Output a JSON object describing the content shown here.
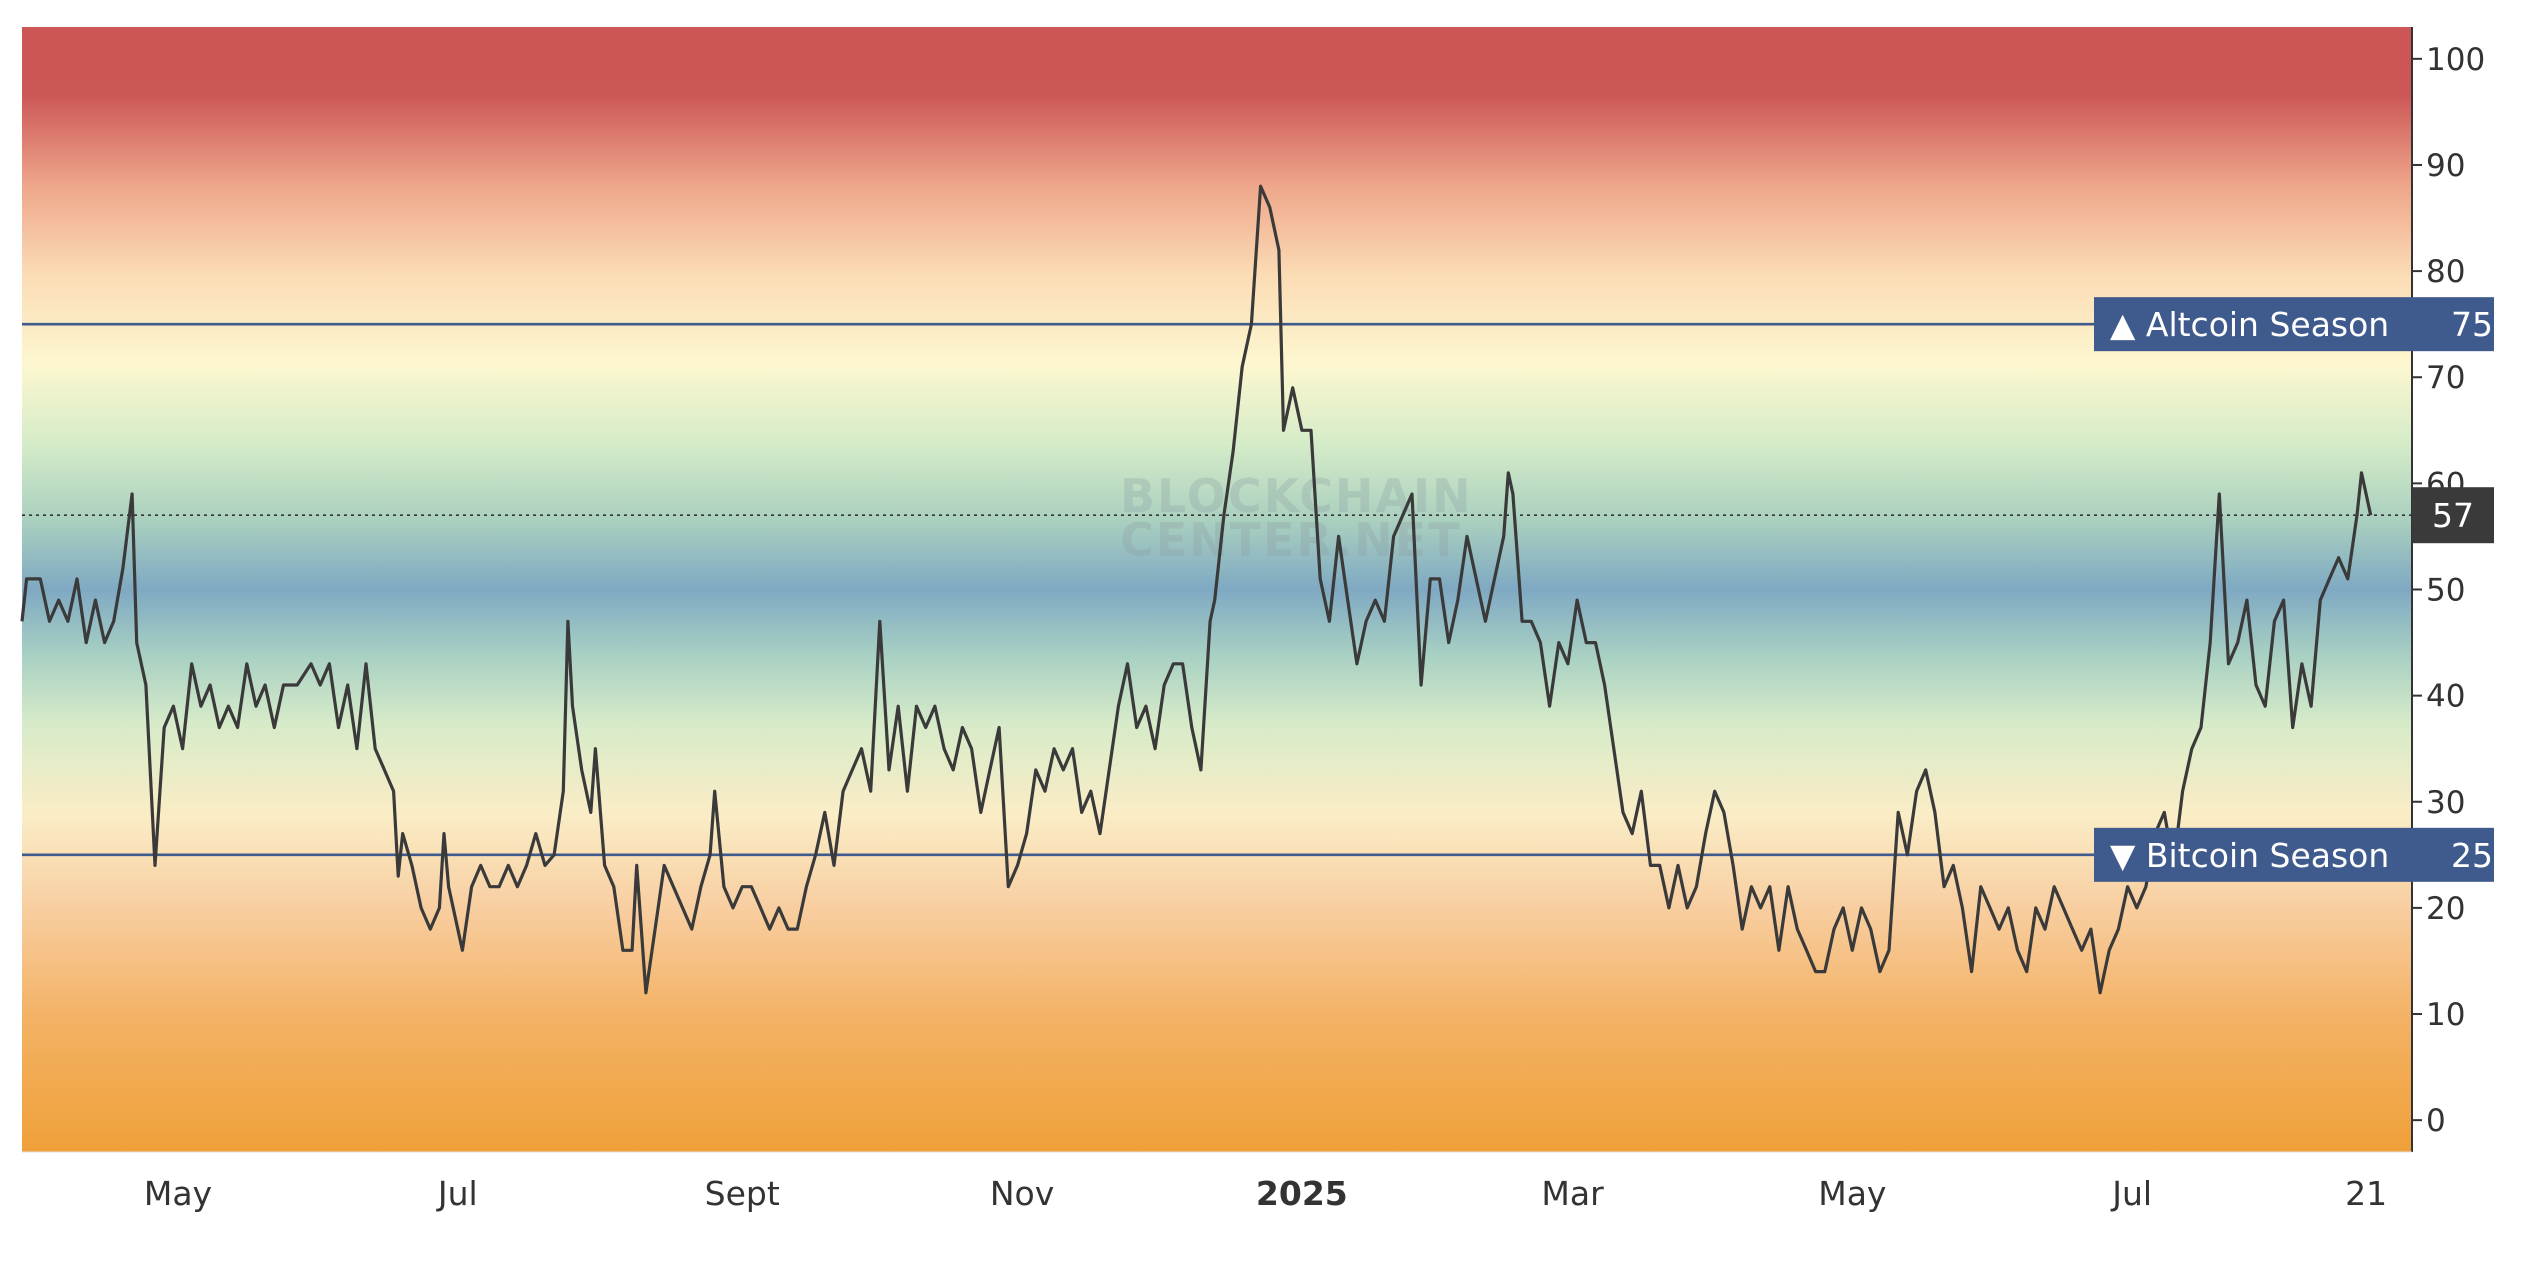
{
  "watermark": [
    "BLOCKCHAIN",
    "CENTER.NET"
  ],
  "colors": {
    "band_top": "#cc5555",
    "band_mid": "#7fa9c3",
    "band_bottom": "#f0a039",
    "line": "#3a3a3a",
    "threshold": "#3f5a8c",
    "current_tag": "#3a3a3a"
  },
  "chart_data": {
    "type": "line",
    "title": "",
    "xlabel": "",
    "ylabel": "",
    "ylim": [
      -3,
      103
    ],
    "yticks": [
      0,
      10,
      20,
      30,
      40,
      50,
      60,
      70,
      80,
      90,
      100
    ],
    "x_range": [
      "2024-03-28",
      "2025-08-31"
    ],
    "x_ticks": [
      {
        "label": "May",
        "date": "2024-05-01",
        "bold": false
      },
      {
        "label": "Jul",
        "date": "2024-07-01",
        "bold": false
      },
      {
        "label": "Sept",
        "date": "2024-09-01",
        "bold": false
      },
      {
        "label": "Nov",
        "date": "2024-11-01",
        "bold": false
      },
      {
        "label": "2025",
        "date": "2025-01-01",
        "bold": true
      },
      {
        "label": "Mar",
        "date": "2025-03-01",
        "bold": false
      },
      {
        "label": "May",
        "date": "2025-05-01",
        "bold": false
      },
      {
        "label": "Jul",
        "date": "2025-07-01",
        "bold": false
      },
      {
        "label": "21",
        "date": "2025-08-21",
        "bold": false
      }
    ],
    "thresholds": [
      {
        "label": "▲ Altcoin Season",
        "value": 75
      },
      {
        "label": "▼ Bitcoin Season",
        "value": 25
      }
    ],
    "current_value": 57,
    "grid": false,
    "series": [
      {
        "points": [
          [
            "2024-03-28",
            47
          ],
          [
            "2024-03-29",
            51
          ],
          [
            "2024-04-01",
            51
          ],
          [
            "2024-04-03",
            47
          ],
          [
            "2024-04-05",
            49
          ],
          [
            "2024-04-07",
            47
          ],
          [
            "2024-04-09",
            51
          ],
          [
            "2024-04-11",
            45
          ],
          [
            "2024-04-13",
            49
          ],
          [
            "2024-04-15",
            45
          ],
          [
            "2024-04-17",
            47
          ],
          [
            "2024-04-19",
            52
          ],
          [
            "2024-04-21",
            59
          ],
          [
            "2024-04-22",
            45
          ],
          [
            "2024-04-24",
            41
          ],
          [
            "2024-04-26",
            24
          ],
          [
            "2024-04-28",
            37
          ],
          [
            "2024-04-30",
            39
          ],
          [
            "2024-05-02",
            35
          ],
          [
            "2024-05-04",
            43
          ],
          [
            "2024-05-06",
            39
          ],
          [
            "2024-05-08",
            41
          ],
          [
            "2024-05-10",
            37
          ],
          [
            "2024-05-12",
            39
          ],
          [
            "2024-05-14",
            37
          ],
          [
            "2024-05-16",
            43
          ],
          [
            "2024-05-18",
            39
          ],
          [
            "2024-05-20",
            41
          ],
          [
            "2024-05-22",
            37
          ],
          [
            "2024-05-24",
            41
          ],
          [
            "2024-05-27",
            41
          ],
          [
            "2024-05-30",
            43
          ],
          [
            "2024-06-01",
            41
          ],
          [
            "2024-06-03",
            43
          ],
          [
            "2024-06-05",
            37
          ],
          [
            "2024-06-07",
            41
          ],
          [
            "2024-06-09",
            35
          ],
          [
            "2024-06-11",
            43
          ],
          [
            "2024-06-13",
            35
          ],
          [
            "2024-06-15",
            33
          ],
          [
            "2024-06-17",
            31
          ],
          [
            "2024-06-18",
            23
          ],
          [
            "2024-06-19",
            27
          ],
          [
            "2024-06-21",
            24
          ],
          [
            "2024-06-23",
            20
          ],
          [
            "2024-06-25",
            18
          ],
          [
            "2024-06-27",
            20
          ],
          [
            "2024-06-28",
            27
          ],
          [
            "2024-06-29",
            22
          ],
          [
            "2024-07-01",
            18
          ],
          [
            "2024-07-02",
            16
          ],
          [
            "2024-07-04",
            22
          ],
          [
            "2024-07-06",
            24
          ],
          [
            "2024-07-08",
            22
          ],
          [
            "2024-07-10",
            22
          ],
          [
            "2024-07-12",
            24
          ],
          [
            "2024-07-14",
            22
          ],
          [
            "2024-07-16",
            24
          ],
          [
            "2024-07-18",
            27
          ],
          [
            "2024-07-20",
            24
          ],
          [
            "2024-07-22",
            25
          ],
          [
            "2024-07-24",
            31
          ],
          [
            "2024-07-25",
            47
          ],
          [
            "2024-07-26",
            39
          ],
          [
            "2024-07-28",
            33
          ],
          [
            "2024-07-30",
            29
          ],
          [
            "2024-07-31",
            35
          ],
          [
            "2024-08-02",
            24
          ],
          [
            "2024-08-04",
            22
          ],
          [
            "2024-08-06",
            16
          ],
          [
            "2024-08-08",
            16
          ],
          [
            "2024-08-09",
            24
          ],
          [
            "2024-08-11",
            12
          ],
          [
            "2024-08-13",
            18
          ],
          [
            "2024-08-15",
            24
          ],
          [
            "2024-08-17",
            22
          ],
          [
            "2024-08-19",
            20
          ],
          [
            "2024-08-21",
            18
          ],
          [
            "2024-08-23",
            22
          ],
          [
            "2024-08-25",
            25
          ],
          [
            "2024-08-26",
            31
          ],
          [
            "2024-08-28",
            22
          ],
          [
            "2024-08-30",
            20
          ],
          [
            "2024-09-01",
            22
          ],
          [
            "2024-09-03",
            22
          ],
          [
            "2024-09-05",
            20
          ],
          [
            "2024-09-07",
            18
          ],
          [
            "2024-09-09",
            20
          ],
          [
            "2024-09-11",
            18
          ],
          [
            "2024-09-13",
            18
          ],
          [
            "2024-09-15",
            22
          ],
          [
            "2024-09-17",
            25
          ],
          [
            "2024-09-19",
            29
          ],
          [
            "2024-09-21",
            24
          ],
          [
            "2024-09-23",
            31
          ],
          [
            "2024-09-25",
            33
          ],
          [
            "2024-09-27",
            35
          ],
          [
            "2024-09-29",
            31
          ],
          [
            "2024-10-01",
            47
          ],
          [
            "2024-10-03",
            33
          ],
          [
            "2024-10-05",
            39
          ],
          [
            "2024-10-07",
            31
          ],
          [
            "2024-10-09",
            39
          ],
          [
            "2024-10-11",
            37
          ],
          [
            "2024-10-13",
            39
          ],
          [
            "2024-10-15",
            35
          ],
          [
            "2024-10-17",
            33
          ],
          [
            "2024-10-19",
            37
          ],
          [
            "2024-10-21",
            35
          ],
          [
            "2024-10-23",
            29
          ],
          [
            "2024-10-25",
            33
          ],
          [
            "2024-10-27",
            37
          ],
          [
            "2024-10-29",
            22
          ],
          [
            "2024-10-31",
            24
          ],
          [
            "2024-11-02",
            27
          ],
          [
            "2024-11-04",
            33
          ],
          [
            "2024-11-06",
            31
          ],
          [
            "2024-11-08",
            35
          ],
          [
            "2024-11-10",
            33
          ],
          [
            "2024-11-12",
            35
          ],
          [
            "2024-11-14",
            29
          ],
          [
            "2024-11-16",
            31
          ],
          [
            "2024-11-18",
            27
          ],
          [
            "2024-11-20",
            33
          ],
          [
            "2024-11-22",
            39
          ],
          [
            "2024-11-24",
            43
          ],
          [
            "2024-11-26",
            37
          ],
          [
            "2024-11-28",
            39
          ],
          [
            "2024-11-30",
            35
          ],
          [
            "2024-12-02",
            41
          ],
          [
            "2024-12-04",
            43
          ],
          [
            "2024-12-06",
            43
          ],
          [
            "2024-12-08",
            37
          ],
          [
            "2024-12-10",
            33
          ],
          [
            "2024-12-12",
            47
          ],
          [
            "2024-12-13",
            49
          ],
          [
            "2024-12-15",
            57
          ],
          [
            "2024-12-17",
            63
          ],
          [
            "2024-12-19",
            71
          ],
          [
            "2024-12-21",
            75
          ],
          [
            "2024-12-23",
            88
          ],
          [
            "2024-12-25",
            86
          ],
          [
            "2024-12-27",
            82
          ],
          [
            "2024-12-28",
            65
          ],
          [
            "2024-12-30",
            69
          ],
          [
            "2025-01-01",
            65
          ],
          [
            "2025-01-03",
            65
          ],
          [
            "2025-01-05",
            51
          ],
          [
            "2025-01-07",
            47
          ],
          [
            "2025-01-09",
            55
          ],
          [
            "2025-01-11",
            49
          ],
          [
            "2025-01-13",
            43
          ],
          [
            "2025-01-15",
            47
          ],
          [
            "2025-01-17",
            49
          ],
          [
            "2025-01-19",
            47
          ],
          [
            "2025-01-21",
            55
          ],
          [
            "2025-01-23",
            57
          ],
          [
            "2025-01-25",
            59
          ],
          [
            "2025-01-27",
            41
          ],
          [
            "2025-01-29",
            51
          ],
          [
            "2025-01-31",
            51
          ],
          [
            "2025-02-02",
            45
          ],
          [
            "2025-02-04",
            49
          ],
          [
            "2025-02-06",
            55
          ],
          [
            "2025-02-08",
            51
          ],
          [
            "2025-02-10",
            47
          ],
          [
            "2025-02-12",
            51
          ],
          [
            "2025-02-14",
            55
          ],
          [
            "2025-02-15",
            61
          ],
          [
            "2025-02-16",
            59
          ],
          [
            "2025-02-18",
            47
          ],
          [
            "2025-02-20",
            47
          ],
          [
            "2025-02-22",
            45
          ],
          [
            "2025-02-24",
            39
          ],
          [
            "2025-02-26",
            45
          ],
          [
            "2025-02-28",
            43
          ],
          [
            "2025-03-02",
            49
          ],
          [
            "2025-03-04",
            45
          ],
          [
            "2025-03-06",
            45
          ],
          [
            "2025-03-08",
            41
          ],
          [
            "2025-03-10",
            35
          ],
          [
            "2025-03-12",
            29
          ],
          [
            "2025-03-14",
            27
          ],
          [
            "2025-03-16",
            31
          ],
          [
            "2025-03-18",
            24
          ],
          [
            "2025-03-20",
            24
          ],
          [
            "2025-03-22",
            20
          ],
          [
            "2025-03-24",
            24
          ],
          [
            "2025-03-26",
            20
          ],
          [
            "2025-03-28",
            22
          ],
          [
            "2025-03-30",
            27
          ],
          [
            "2025-04-01",
            31
          ],
          [
            "2025-04-03",
            29
          ],
          [
            "2025-04-05",
            24
          ],
          [
            "2025-04-07",
            18
          ],
          [
            "2025-04-09",
            22
          ],
          [
            "2025-04-11",
            20
          ],
          [
            "2025-04-13",
            22
          ],
          [
            "2025-04-15",
            16
          ],
          [
            "2025-04-17",
            22
          ],
          [
            "2025-04-19",
            18
          ],
          [
            "2025-04-21",
            16
          ],
          [
            "2025-04-23",
            14
          ],
          [
            "2025-04-25",
            14
          ],
          [
            "2025-04-27",
            18
          ],
          [
            "2025-04-29",
            20
          ],
          [
            "2025-05-01",
            16
          ],
          [
            "2025-05-03",
            20
          ],
          [
            "2025-05-05",
            18
          ],
          [
            "2025-05-07",
            14
          ],
          [
            "2025-05-09",
            16
          ],
          [
            "2025-05-11",
            29
          ],
          [
            "2025-05-13",
            25
          ],
          [
            "2025-05-15",
            31
          ],
          [
            "2025-05-17",
            33
          ],
          [
            "2025-05-19",
            29
          ],
          [
            "2025-05-21",
            22
          ],
          [
            "2025-05-23",
            24
          ],
          [
            "2025-05-25",
            20
          ],
          [
            "2025-05-27",
            14
          ],
          [
            "2025-05-29",
            22
          ],
          [
            "2025-05-31",
            20
          ],
          [
            "2025-06-02",
            18
          ],
          [
            "2025-06-04",
            20
          ],
          [
            "2025-06-06",
            16
          ],
          [
            "2025-06-08",
            14
          ],
          [
            "2025-06-10",
            20
          ],
          [
            "2025-06-12",
            18
          ],
          [
            "2025-06-14",
            22
          ],
          [
            "2025-06-16",
            20
          ],
          [
            "2025-06-18",
            18
          ],
          [
            "2025-06-20",
            16
          ],
          [
            "2025-06-22",
            18
          ],
          [
            "2025-06-24",
            12
          ],
          [
            "2025-06-26",
            16
          ],
          [
            "2025-06-28",
            18
          ],
          [
            "2025-06-30",
            22
          ],
          [
            "2025-07-02",
            20
          ],
          [
            "2025-07-04",
            22
          ],
          [
            "2025-07-06",
            27
          ],
          [
            "2025-07-08",
            29
          ],
          [
            "2025-07-10",
            24
          ],
          [
            "2025-07-12",
            31
          ],
          [
            "2025-07-14",
            35
          ],
          [
            "2025-07-16",
            37
          ],
          [
            "2025-07-18",
            45
          ],
          [
            "2025-07-20",
            59
          ],
          [
            "2025-07-22",
            43
          ],
          [
            "2025-07-24",
            45
          ],
          [
            "2025-07-26",
            49
          ],
          [
            "2025-07-28",
            41
          ],
          [
            "2025-07-30",
            39
          ],
          [
            "2025-08-01",
            47
          ],
          [
            "2025-08-03",
            49
          ],
          [
            "2025-08-05",
            37
          ],
          [
            "2025-08-07",
            43
          ],
          [
            "2025-08-09",
            39
          ],
          [
            "2025-08-11",
            49
          ],
          [
            "2025-08-13",
            51
          ],
          [
            "2025-08-15",
            53
          ],
          [
            "2025-08-17",
            51
          ],
          [
            "2025-08-19",
            57
          ],
          [
            "2025-08-20",
            61
          ],
          [
            "2025-08-22",
            57
          ]
        ]
      }
    ]
  }
}
